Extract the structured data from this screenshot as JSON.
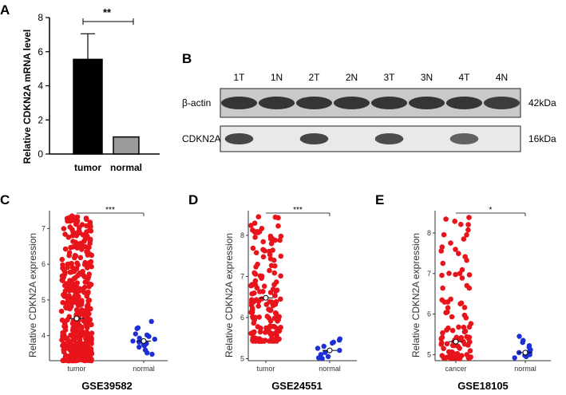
{
  "panels": {
    "A": "A",
    "B": "B",
    "C": "C",
    "D": "D",
    "E": "E"
  },
  "colors": {
    "tumor_bar": "#000000",
    "normal_bar": "#9a9a9a",
    "tumor_points": "#e8141b",
    "normal_points": "#1f2fd6",
    "axis": "#000000"
  },
  "blot": {
    "lanes": [
      "1T",
      "1N",
      "2T",
      "2N",
      "3T",
      "3N",
      "4T",
      "4N"
    ],
    "rows": [
      {
        "label": "β-actin",
        "size": "42kDa",
        "intensity": [
          1,
          1,
          1,
          1,
          1,
          1,
          1,
          0.95
        ]
      },
      {
        "label": "CDKN2A",
        "size": "16kDa",
        "intensity": [
          0.9,
          0.03,
          0.9,
          0.05,
          0.85,
          0.05,
          0.7,
          0.03
        ]
      }
    ]
  },
  "chart_data": [
    {
      "id": "A",
      "type": "bar",
      "categories": [
        "tumor",
        "normal"
      ],
      "values": [
        5.55,
        1.0
      ],
      "errors": [
        1.5,
        0
      ],
      "ylabel": "Relative CDKN2A mRNA level",
      "ylim": [
        0,
        8
      ],
      "yticks": [
        0,
        2,
        4,
        6,
        8
      ],
      "significance": "**"
    },
    {
      "id": "C",
      "type": "scatter",
      "categories": [
        "tumor",
        "normal"
      ],
      "ylabel": "Relative CDKN2A expression",
      "ylim": [
        3.3,
        7.5
      ],
      "yticks": [
        4,
        5,
        6,
        7
      ],
      "means": [
        4.48,
        3.85
      ],
      "significance": "***",
      "title": "GSE39582",
      "series": [
        {
          "name": "tumor",
          "n": 420,
          "min": 3.3,
          "max": 7.35,
          "mean": 4.48
        },
        {
          "name": "normal",
          "values": [
            4.4,
            4.22,
            4.2,
            4.05,
            4.02,
            3.98,
            3.93,
            3.9,
            3.85,
            3.82,
            3.78,
            3.75,
            3.72,
            3.68,
            3.6,
            3.52,
            3.48
          ]
        }
      ]
    },
    {
      "id": "D",
      "type": "scatter",
      "categories": [
        "tumor",
        "normal"
      ],
      "ylabel": "Relative CDKN2A expression",
      "ylim": [
        4.95,
        8.6
      ],
      "yticks": [
        5,
        6,
        7,
        8
      ],
      "means": [
        6.48,
        5.2
      ],
      "significance": "***",
      "title": "GSE24551",
      "series": [
        {
          "name": "tumor",
          "n": 160,
          "min": 5.42,
          "max": 8.45,
          "mean": 6.48
        },
        {
          "name": "normal",
          "values": [
            5.48,
            5.45,
            5.4,
            5.38,
            5.3,
            5.25,
            5.2,
            5.15,
            5.1,
            5.05,
            5.02,
            5.0
          ]
        }
      ]
    },
    {
      "id": "E",
      "type": "scatter",
      "categories": [
        "cancer",
        "normal"
      ],
      "ylabel": "Relative CDKN2A expression",
      "ylim": [
        4.85,
        8.55
      ],
      "yticks": [
        5,
        6,
        7,
        8
      ],
      "means": [
        5.32,
        5.05
      ],
      "significance": "*",
      "title": "GSE18105",
      "series": [
        {
          "name": "cancer",
          "n": 95,
          "min": 4.9,
          "max": 8.38,
          "mean": 5.32
        },
        {
          "name": "normal",
          "values": [
            5.45,
            5.35,
            5.3,
            5.22,
            5.18,
            5.12,
            5.08,
            5.05,
            5.02,
            5.0,
            4.98,
            4.95,
            4.92
          ]
        }
      ]
    }
  ]
}
